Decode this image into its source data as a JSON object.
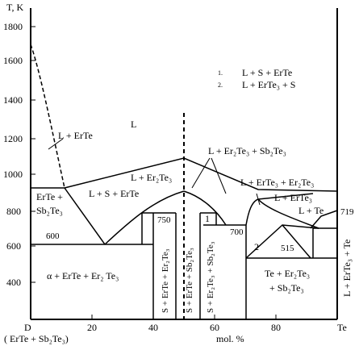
{
  "axes": {
    "y_title": "T, K",
    "y_ticks": [
      "1800",
      "1600",
      "1400",
      "1200",
      "1000",
      "800",
      "600",
      "400"
    ],
    "x_ticks": [
      "20",
      "40",
      "60",
      "80"
    ],
    "x_left_end": "D",
    "x_right_end": "Te",
    "x_title": "mol. %",
    "left_composition": "( ErTe + Sb₂Te₃)"
  },
  "legend": {
    "item1_num": "1.",
    "item1_text": "L + S + ErTe",
    "item2_num": "2.",
    "item2_text": "L + ErTe₃ + S"
  },
  "temperatures": {
    "t1": "750",
    "t2": "700",
    "t3": "600",
    "t4": "515",
    "t5": "719"
  },
  "regions": {
    "L": "L",
    "L_ErTe": "L + ErTe",
    "L_S_ErTe": "L + S + ErTe",
    "L_Er2Te3": "L + Er₂Te₃",
    "L_Er2Te3_Sb2Te3": "L + Er₂Te₃ + Sb₂Te₃",
    "L_ErTe3_Er2Te3": "L + ErTe₃ + Er₂Te₃",
    "L_ErTe3": "L + ErTe₃",
    "L_Te": "L + Te",
    "ErTe_Sb2Te3_line1": "ErTe +",
    "ErTe_Sb2Te3_line2": "Sb₂Te₃",
    "alpha": "α + ErTe + Er₂ Te₃",
    "S_ErTe_Er2Te3": "S + ErTe + Er₂Te₃",
    "S_ErTe_Sb2Te3": "S + ErTe + Sb₂Te₃",
    "S_Er2Te3_Sb2Te3": "S + Er₂Te₃ + Sb₂Te₃",
    "Te_Er2Te3_Sb2Te3_line1": "Te + Er₂Te₃",
    "Te_Er2Te3_Sb2Te3_line2": "+ Sb₂Te₃",
    "L_ErTe3_Te": "L + ErTe₃ + Te",
    "num1": "1",
    "num2": "2"
  }
}
